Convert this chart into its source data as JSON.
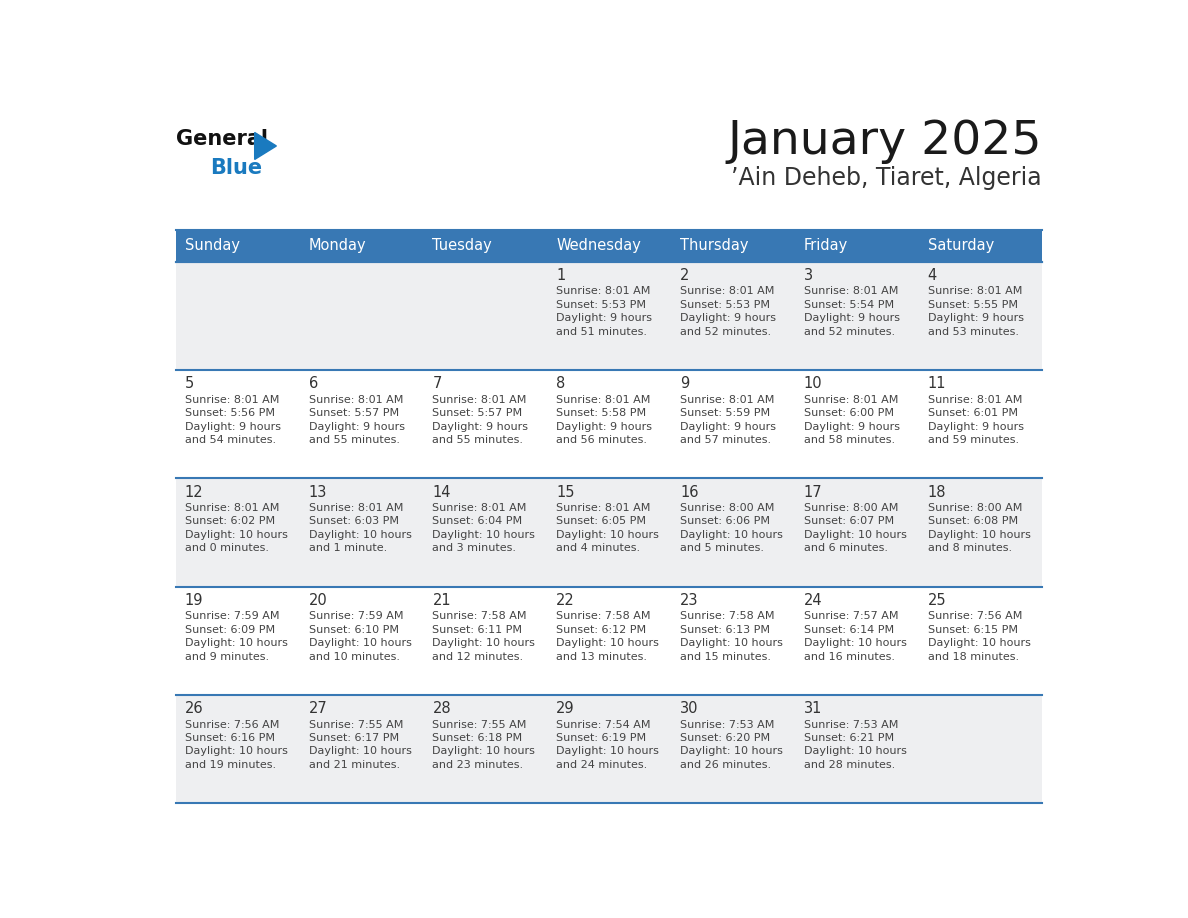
{
  "title": "January 2025",
  "subtitle": "’Ain Deheb, Tiaret, Algeria",
  "days_of_week": [
    "Sunday",
    "Monday",
    "Tuesday",
    "Wednesday",
    "Thursday",
    "Friday",
    "Saturday"
  ],
  "header_bg": "#3878b4",
  "header_text": "#ffffff",
  "row_bg_light": "#eeeff1",
  "row_bg_white": "#ffffff",
  "cell_border_color": "#3878b4",
  "day_number_color": "#333333",
  "cell_text_color": "#444444",
  "title_color": "#1a1a1a",
  "subtitle_color": "#333333",
  "logo_general_color": "#111111",
  "logo_blue_color": "#1a7abf",
  "logo_triangle_color": "#1a7abf",
  "calendar_data": [
    [
      {
        "day": "",
        "sunrise": "",
        "sunset": "",
        "daylight_hours": "",
        "daylight_mins": ""
      },
      {
        "day": "",
        "sunrise": "",
        "sunset": "",
        "daylight_hours": "",
        "daylight_mins": ""
      },
      {
        "day": "",
        "sunrise": "",
        "sunset": "",
        "daylight_hours": "",
        "daylight_mins": ""
      },
      {
        "day": "1",
        "sunrise": "8:01 AM",
        "sunset": "5:53 PM",
        "daylight_hours": "9 hours",
        "daylight_mins": "and 51 minutes."
      },
      {
        "day": "2",
        "sunrise": "8:01 AM",
        "sunset": "5:53 PM",
        "daylight_hours": "9 hours",
        "daylight_mins": "and 52 minutes."
      },
      {
        "day": "3",
        "sunrise": "8:01 AM",
        "sunset": "5:54 PM",
        "daylight_hours": "9 hours",
        "daylight_mins": "and 52 minutes."
      },
      {
        "day": "4",
        "sunrise": "8:01 AM",
        "sunset": "5:55 PM",
        "daylight_hours": "9 hours",
        "daylight_mins": "and 53 minutes."
      }
    ],
    [
      {
        "day": "5",
        "sunrise": "8:01 AM",
        "sunset": "5:56 PM",
        "daylight_hours": "9 hours",
        "daylight_mins": "and 54 minutes."
      },
      {
        "day": "6",
        "sunrise": "8:01 AM",
        "sunset": "5:57 PM",
        "daylight_hours": "9 hours",
        "daylight_mins": "and 55 minutes."
      },
      {
        "day": "7",
        "sunrise": "8:01 AM",
        "sunset": "5:57 PM",
        "daylight_hours": "9 hours",
        "daylight_mins": "and 55 minutes."
      },
      {
        "day": "8",
        "sunrise": "8:01 AM",
        "sunset": "5:58 PM",
        "daylight_hours": "9 hours",
        "daylight_mins": "and 56 minutes."
      },
      {
        "day": "9",
        "sunrise": "8:01 AM",
        "sunset": "5:59 PM",
        "daylight_hours": "9 hours",
        "daylight_mins": "and 57 minutes."
      },
      {
        "day": "10",
        "sunrise": "8:01 AM",
        "sunset": "6:00 PM",
        "daylight_hours": "9 hours",
        "daylight_mins": "and 58 minutes."
      },
      {
        "day": "11",
        "sunrise": "8:01 AM",
        "sunset": "6:01 PM",
        "daylight_hours": "9 hours",
        "daylight_mins": "and 59 minutes."
      }
    ],
    [
      {
        "day": "12",
        "sunrise": "8:01 AM",
        "sunset": "6:02 PM",
        "daylight_hours": "10 hours",
        "daylight_mins": "and 0 minutes."
      },
      {
        "day": "13",
        "sunrise": "8:01 AM",
        "sunset": "6:03 PM",
        "daylight_hours": "10 hours",
        "daylight_mins": "and 1 minute."
      },
      {
        "day": "14",
        "sunrise": "8:01 AM",
        "sunset": "6:04 PM",
        "daylight_hours": "10 hours",
        "daylight_mins": "and 3 minutes."
      },
      {
        "day": "15",
        "sunrise": "8:01 AM",
        "sunset": "6:05 PM",
        "daylight_hours": "10 hours",
        "daylight_mins": "and 4 minutes."
      },
      {
        "day": "16",
        "sunrise": "8:00 AM",
        "sunset": "6:06 PM",
        "daylight_hours": "10 hours",
        "daylight_mins": "and 5 minutes."
      },
      {
        "day": "17",
        "sunrise": "8:00 AM",
        "sunset": "6:07 PM",
        "daylight_hours": "10 hours",
        "daylight_mins": "and 6 minutes."
      },
      {
        "day": "18",
        "sunrise": "8:00 AM",
        "sunset": "6:08 PM",
        "daylight_hours": "10 hours",
        "daylight_mins": "and 8 minutes."
      }
    ],
    [
      {
        "day": "19",
        "sunrise": "7:59 AM",
        "sunset": "6:09 PM",
        "daylight_hours": "10 hours",
        "daylight_mins": "and 9 minutes."
      },
      {
        "day": "20",
        "sunrise": "7:59 AM",
        "sunset": "6:10 PM",
        "daylight_hours": "10 hours",
        "daylight_mins": "and 10 minutes."
      },
      {
        "day": "21",
        "sunrise": "7:58 AM",
        "sunset": "6:11 PM",
        "daylight_hours": "10 hours",
        "daylight_mins": "and 12 minutes."
      },
      {
        "day": "22",
        "sunrise": "7:58 AM",
        "sunset": "6:12 PM",
        "daylight_hours": "10 hours",
        "daylight_mins": "and 13 minutes."
      },
      {
        "day": "23",
        "sunrise": "7:58 AM",
        "sunset": "6:13 PM",
        "daylight_hours": "10 hours",
        "daylight_mins": "and 15 minutes."
      },
      {
        "day": "24",
        "sunrise": "7:57 AM",
        "sunset": "6:14 PM",
        "daylight_hours": "10 hours",
        "daylight_mins": "and 16 minutes."
      },
      {
        "day": "25",
        "sunrise": "7:56 AM",
        "sunset": "6:15 PM",
        "daylight_hours": "10 hours",
        "daylight_mins": "and 18 minutes."
      }
    ],
    [
      {
        "day": "26",
        "sunrise": "7:56 AM",
        "sunset": "6:16 PM",
        "daylight_hours": "10 hours",
        "daylight_mins": "and 19 minutes."
      },
      {
        "day": "27",
        "sunrise": "7:55 AM",
        "sunset": "6:17 PM",
        "daylight_hours": "10 hours",
        "daylight_mins": "and 21 minutes."
      },
      {
        "day": "28",
        "sunrise": "7:55 AM",
        "sunset": "6:18 PM",
        "daylight_hours": "10 hours",
        "daylight_mins": "and 23 minutes."
      },
      {
        "day": "29",
        "sunrise": "7:54 AM",
        "sunset": "6:19 PM",
        "daylight_hours": "10 hours",
        "daylight_mins": "and 24 minutes."
      },
      {
        "day": "30",
        "sunrise": "7:53 AM",
        "sunset": "6:20 PM",
        "daylight_hours": "10 hours",
        "daylight_mins": "and 26 minutes."
      },
      {
        "day": "31",
        "sunrise": "7:53 AM",
        "sunset": "6:21 PM",
        "daylight_hours": "10 hours",
        "daylight_mins": "and 28 minutes."
      },
      {
        "day": "",
        "sunrise": "",
        "sunset": "",
        "daylight_hours": "",
        "daylight_mins": ""
      }
    ]
  ]
}
